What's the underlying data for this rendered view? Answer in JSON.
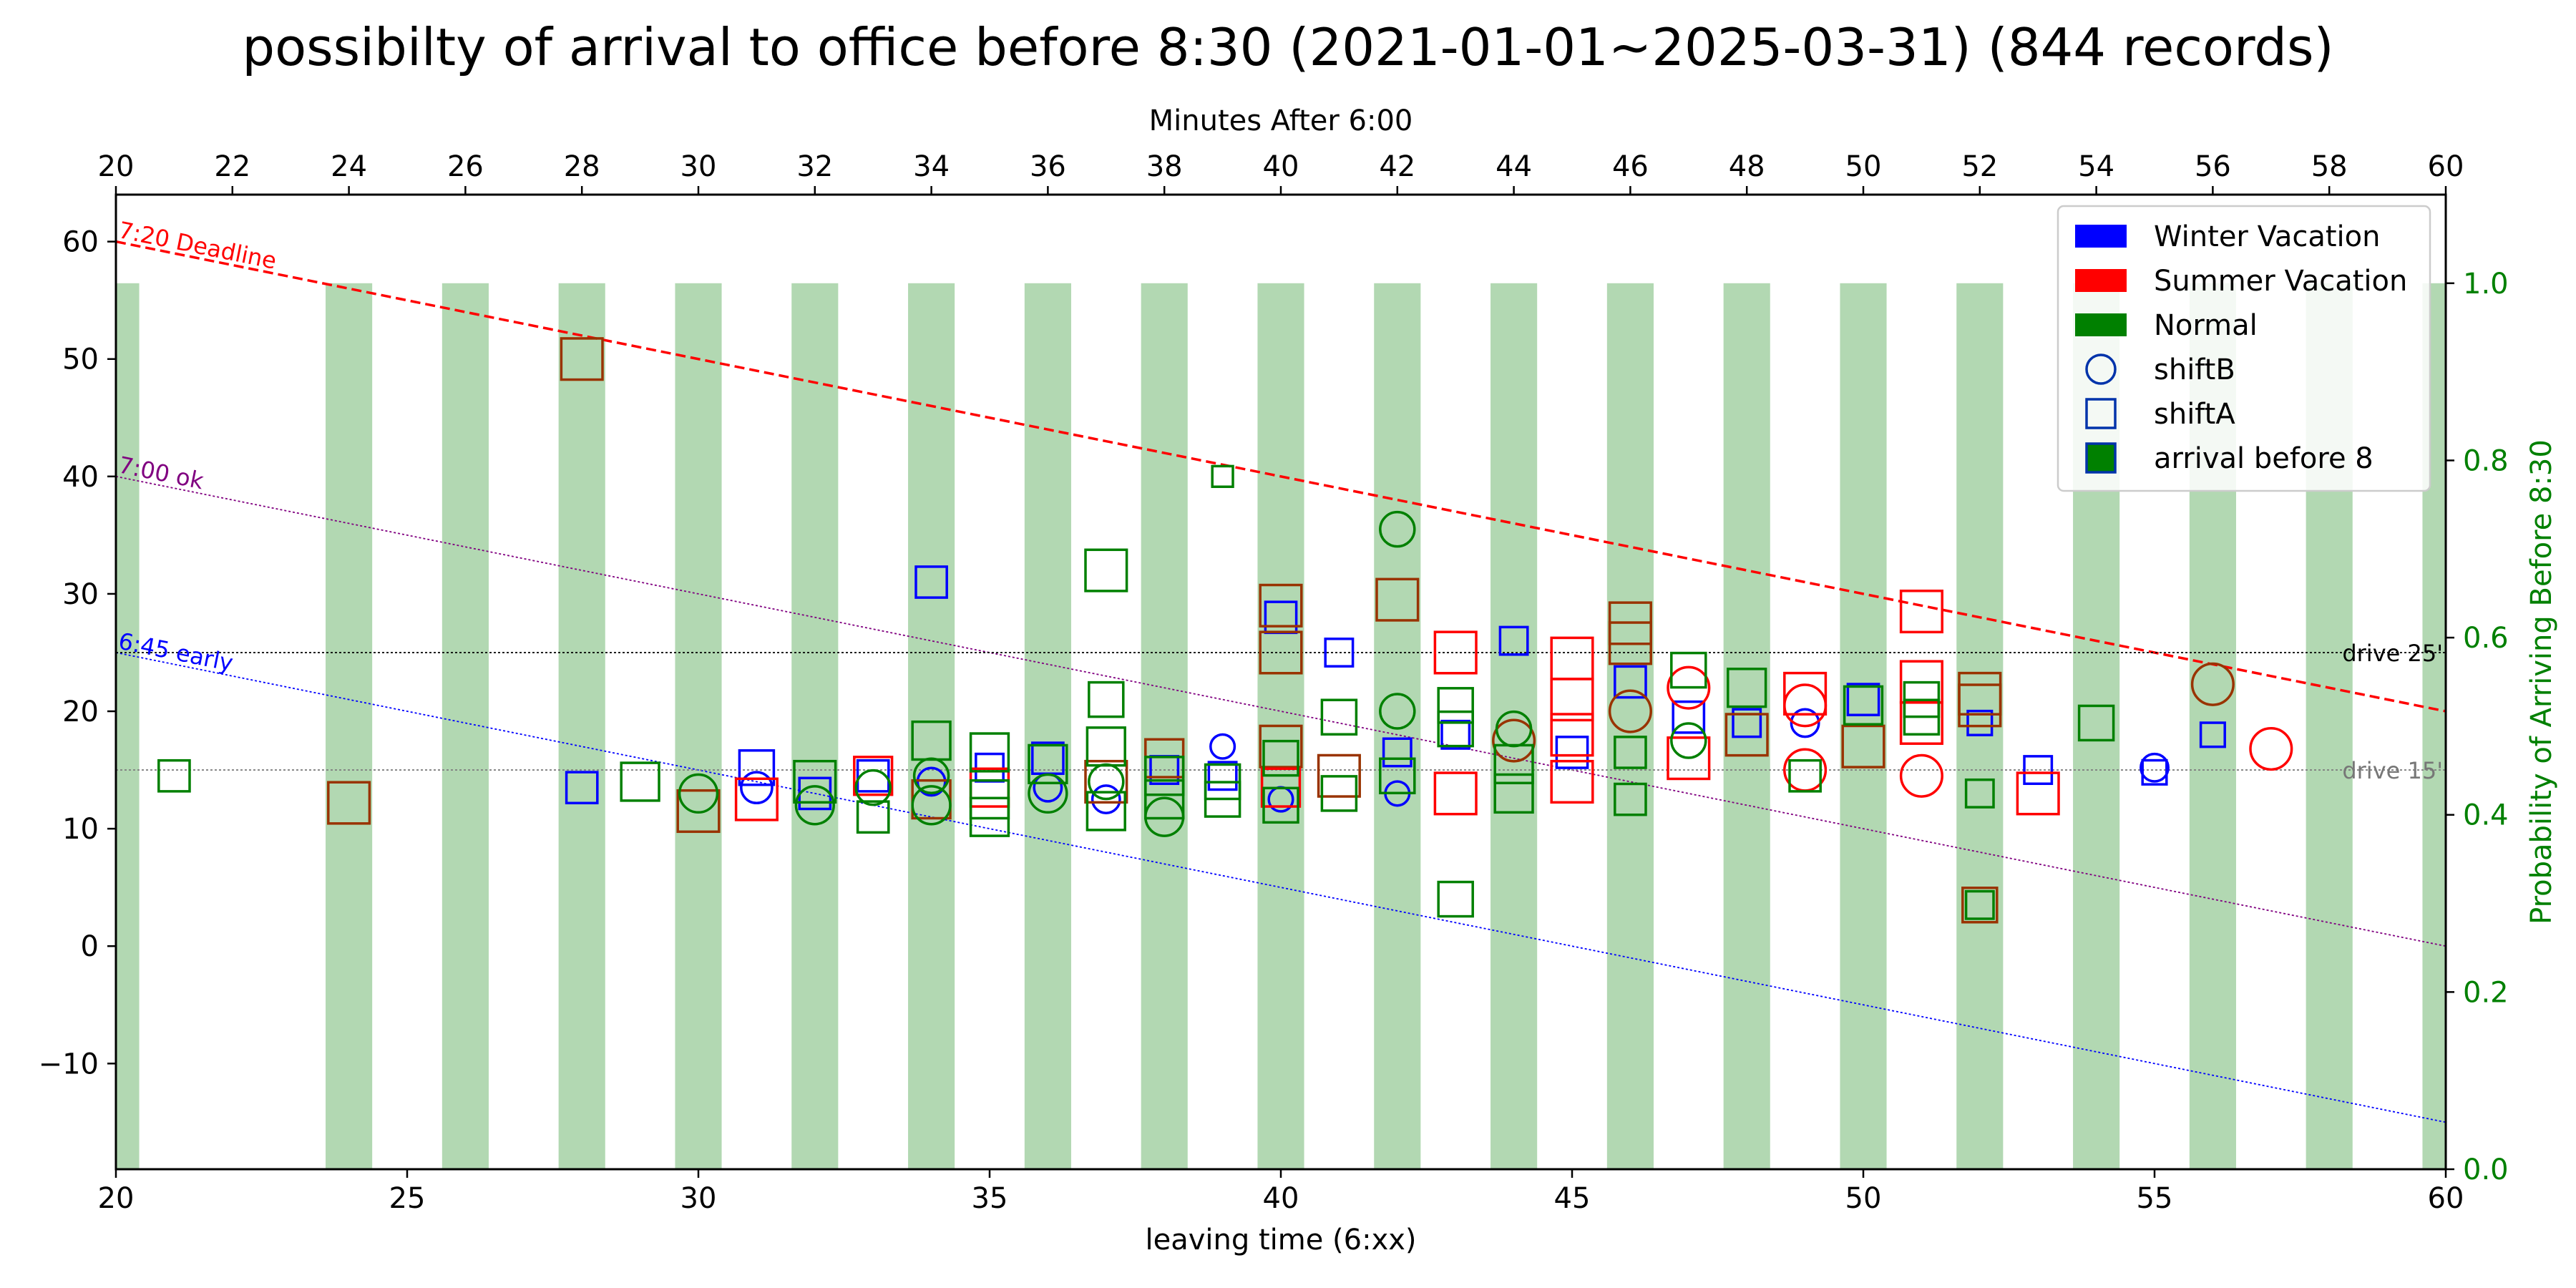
{
  "colors": {
    "winter": "#0000ff",
    "summer": "#ff0000",
    "normal": "#008000",
    "arrive_before_8": "#993300",
    "prob_bar": "#b2d8b2",
    "prob_axis": "#008000"
  },
  "chart_data": {
    "type": "scatter",
    "title": "possibilty of arrival to office before 8:30 (2021-01-01~2025-03-31) (844 records)",
    "xlabel": "leaving time (6:xx)",
    "xlabel_top": "Minutes After 6:00",
    "ylabel_right": "Probability of Arriving Before 8:30",
    "xlim": [
      20,
      60
    ],
    "ylim": [
      -19,
      64
    ],
    "ylim_right": [
      0,
      1.1
    ],
    "xticks": [
      20,
      25,
      30,
      35,
      40,
      45,
      50,
      55,
      60
    ],
    "xticks_top": [
      20,
      22,
      24,
      26,
      28,
      30,
      32,
      34,
      36,
      38,
      40,
      42,
      44,
      46,
      48,
      50,
      52,
      54,
      56,
      58,
      60
    ],
    "yticks": [
      -10,
      0,
      10,
      20,
      30,
      40,
      50,
      60
    ],
    "yticks_right": [
      0.0,
      0.2,
      0.4,
      0.6,
      0.8,
      1.0
    ],
    "legend": {
      "position": "top-right",
      "items": [
        {
          "label": "Winter Vacation",
          "kind": "patch",
          "color": "#0000ff"
        },
        {
          "label": "Summer Vacation",
          "kind": "patch",
          "color": "#ff0000"
        },
        {
          "label": "Normal",
          "kind": "patch",
          "color": "#008000"
        },
        {
          "label": "shiftB",
          "kind": "circle",
          "color": "#0033aa"
        },
        {
          "label": "shiftA",
          "kind": "square",
          "color": "#0033aa"
        },
        {
          "label": "arrival before 8",
          "kind": "square-filled",
          "color": "#0033aa"
        }
      ]
    },
    "reference_lines": [
      {
        "label": "7:20 Deadline",
        "x": [
          20,
          60
        ],
        "y": [
          60,
          20
        ],
        "color": "#ff0000",
        "style": "dashed"
      },
      {
        "label": "7:00 ok",
        "x": [
          20,
          60
        ],
        "y": [
          40,
          0
        ],
        "color": "#800080",
        "style": "dotted"
      },
      {
        "label": "6:45 early",
        "x": [
          20,
          60
        ],
        "y": [
          25,
          -15
        ],
        "color": "#0000ff",
        "style": "dotted"
      },
      {
        "label": "drive 25'",
        "x": [
          20,
          60
        ],
        "y": [
          25,
          25
        ],
        "color": "#000000",
        "style": "dotted"
      },
      {
        "label": "drive 15'",
        "x": [
          20,
          60
        ],
        "y": [
          15,
          15
        ],
        "color": "#808080",
        "style": "dotted"
      }
    ],
    "probability_bars": [
      {
        "x": 20,
        "p": 1.0
      },
      {
        "x": 24,
        "p": 1.0
      },
      {
        "x": 26,
        "p": 1.0
      },
      {
        "x": 28,
        "p": 1.0
      },
      {
        "x": 30,
        "p": 1.0
      },
      {
        "x": 32,
        "p": 1.0
      },
      {
        "x": 34,
        "p": 1.0
      },
      {
        "x": 36,
        "p": 1.0
      },
      {
        "x": 38,
        "p": 1.0
      },
      {
        "x": 40,
        "p": 1.0
      },
      {
        "x": 42,
        "p": 1.0
      },
      {
        "x": 44,
        "p": 1.0
      },
      {
        "x": 46,
        "p": 1.0
      },
      {
        "x": 48,
        "p": 1.0
      },
      {
        "x": 50,
        "p": 1.0
      },
      {
        "x": 52,
        "p": 1.0
      },
      {
        "x": 54,
        "p": 1.0
      },
      {
        "x": 56,
        "p": 1.0
      },
      {
        "x": 58,
        "p": 1.0
      },
      {
        "x": 60,
        "p": 1.0
      }
    ],
    "series": [
      {
        "name": "Winter Vacation",
        "points": [
          {
            "x": 28,
            "y": 13.5,
            "m": "s",
            "s": 0.9
          },
          {
            "x": 31,
            "y": 15.2,
            "m": "s",
            "s": 1
          },
          {
            "x": 31,
            "y": 13.5,
            "m": "o",
            "s": 0.9
          },
          {
            "x": 32,
            "y": 13,
            "m": "s",
            "s": 0.9
          },
          {
            "x": 33,
            "y": 14.5,
            "m": "s",
            "s": 0.9
          },
          {
            "x": 34,
            "y": 31,
            "m": "s",
            "s": 0.9
          },
          {
            "x": 34,
            "y": 14,
            "m": "o",
            "s": 0.8
          },
          {
            "x": 35,
            "y": 15.2,
            "m": "s",
            "s": 0.8
          },
          {
            "x": 36,
            "y": 16,
            "m": "s",
            "s": 0.9
          },
          {
            "x": 36,
            "y": 13.5,
            "m": "o",
            "s": 0.8
          },
          {
            "x": 37,
            "y": 12.5,
            "m": "o",
            "s": 0.8
          },
          {
            "x": 38,
            "y": 15,
            "m": "s",
            "s": 0.8
          },
          {
            "x": 39,
            "y": 17,
            "m": "o",
            "s": 0.7
          },
          {
            "x": 39,
            "y": 14.5,
            "m": "s",
            "s": 0.8
          },
          {
            "x": 40,
            "y": 28,
            "m": "s",
            "s": 0.9
          },
          {
            "x": 40,
            "y": 12.5,
            "m": "o",
            "s": 0.7
          },
          {
            "x": 41,
            "y": 25,
            "m": "s",
            "s": 0.8
          },
          {
            "x": 42,
            "y": 16.5,
            "m": "s",
            "s": 0.8
          },
          {
            "x": 42,
            "y": 13,
            "m": "o",
            "s": 0.7
          },
          {
            "x": 43,
            "y": 18,
            "m": "s",
            "s": 0.8
          },
          {
            "x": 44,
            "y": 26,
            "m": "s",
            "s": 0.8
          },
          {
            "x": 45,
            "y": 16.5,
            "m": "s",
            "s": 0.9
          },
          {
            "x": 46,
            "y": 22.5,
            "m": "s",
            "s": 0.9
          },
          {
            "x": 47,
            "y": 19.5,
            "m": "s",
            "s": 0.9
          },
          {
            "x": 48,
            "y": 19,
            "m": "s",
            "s": 0.8
          },
          {
            "x": 49,
            "y": 19,
            "m": "o",
            "s": 0.8
          },
          {
            "x": 50,
            "y": 21,
            "m": "s",
            "s": 0.9
          },
          {
            "x": 52,
            "y": 19,
            "m": "s",
            "s": 0.7
          },
          {
            "x": 53,
            "y": 15,
            "m": "s",
            "s": 0.8
          },
          {
            "x": 55,
            "y": 15.2,
            "m": "o",
            "s": 0.8
          },
          {
            "x": 55,
            "y": 14.8,
            "m": "s",
            "s": 0.7
          },
          {
            "x": 56,
            "y": 18,
            "m": "s",
            "s": 0.7
          }
        ]
      },
      {
        "name": "Summer Vacation",
        "points": [
          {
            "x": 24,
            "y": 12.2,
            "m": "s",
            "s": 1.2,
            "e": true
          },
          {
            "x": 28,
            "y": 50,
            "m": "s",
            "s": 1.2,
            "e": true
          },
          {
            "x": 30,
            "y": 11.5,
            "m": "s",
            "s": 1.2,
            "e": true
          },
          {
            "x": 31,
            "y": 12.5,
            "m": "s",
            "s": 1.2
          },
          {
            "x": 33,
            "y": 14.5,
            "m": "s",
            "s": 1.1
          },
          {
            "x": 34,
            "y": 12.5,
            "m": "s",
            "s": 1.1,
            "e": true
          },
          {
            "x": 35,
            "y": 13.5,
            "m": "s",
            "s": 1.1
          },
          {
            "x": 37,
            "y": 14,
            "m": "s",
            "s": 1.2,
            "e": true
          },
          {
            "x": 38,
            "y": 16,
            "m": "s",
            "s": 1.1,
            "e": true
          },
          {
            "x": 40,
            "y": 29,
            "m": "s",
            "s": 1.2,
            "e": true
          },
          {
            "x": 40,
            "y": 25,
            "m": "s",
            "s": 1.2,
            "e": true
          },
          {
            "x": 40,
            "y": 17,
            "m": "s",
            "s": 1.2,
            "e": true
          },
          {
            "x": 40,
            "y": 13.5,
            "m": "s",
            "s": 1.1
          },
          {
            "x": 41,
            "y": 14.5,
            "m": "s",
            "s": 1.2,
            "e": true
          },
          {
            "x": 42,
            "y": 29.5,
            "m": "s",
            "s": 1.2,
            "e": true
          },
          {
            "x": 43,
            "y": 25,
            "m": "s",
            "s": 1.2
          },
          {
            "x": 43,
            "y": 13,
            "m": "s",
            "s": 1.2
          },
          {
            "x": 44,
            "y": 17.5,
            "m": "o",
            "s": 1.2,
            "e": true
          },
          {
            "x": 45,
            "y": 24.5,
            "m": "s",
            "s": 1.2
          },
          {
            "x": 45,
            "y": 21,
            "m": "s",
            "s": 1.2
          },
          {
            "x": 45,
            "y": 18,
            "m": "s",
            "s": 1.2
          },
          {
            "x": 45,
            "y": 14,
            "m": "s",
            "s": 1.2
          },
          {
            "x": 46,
            "y": 27.5,
            "m": "s",
            "s": 1.2,
            "e": true
          },
          {
            "x": 46,
            "y": 25.8,
            "m": "s",
            "s": 1.2,
            "e": true
          },
          {
            "x": 46,
            "y": 20,
            "m": "o",
            "s": 1.2,
            "e": true
          },
          {
            "x": 47,
            "y": 22,
            "m": "o",
            "s": 1.2
          },
          {
            "x": 47,
            "y": 16,
            "m": "s",
            "s": 1.2
          },
          {
            "x": 48,
            "y": 18,
            "m": "s",
            "s": 1.2,
            "e": true
          },
          {
            "x": 49,
            "y": 21.5,
            "m": "s",
            "s": 1.2
          },
          {
            "x": 49,
            "y": 20.5,
            "m": "o",
            "s": 1.2
          },
          {
            "x": 49,
            "y": 15,
            "m": "o",
            "s": 1.2
          },
          {
            "x": 50,
            "y": 17,
            "m": "s",
            "s": 1.2,
            "e": true
          },
          {
            "x": 51,
            "y": 28.5,
            "m": "s",
            "s": 1.2
          },
          {
            "x": 51,
            "y": 22.5,
            "m": "s",
            "s": 1.2
          },
          {
            "x": 51,
            "y": 19,
            "m": "s",
            "s": 1.2
          },
          {
            "x": 51,
            "y": 14.5,
            "m": "o",
            "s": 1.2
          },
          {
            "x": 52,
            "y": 21.5,
            "m": "s",
            "s": 1.2,
            "e": true
          },
          {
            "x": 52,
            "y": 20.5,
            "m": "s",
            "s": 1.2,
            "e": true
          },
          {
            "x": 52,
            "y": 3.5,
            "m": "s",
            "s": 1.0,
            "e": true
          },
          {
            "x": 53,
            "y": 13,
            "m": "s",
            "s": 1.2
          },
          {
            "x": 56,
            "y": 22.3,
            "m": "o",
            "s": 1.2,
            "e": true
          },
          {
            "x": 57,
            "y": 16.8,
            "m": "o",
            "s": 1.2
          }
        ]
      },
      {
        "name": "Normal",
        "points": [
          {
            "x": 21,
            "y": 14.5,
            "m": "s",
            "s": 0.9
          },
          {
            "x": 29,
            "y": 14,
            "m": "s",
            "s": 1.1
          },
          {
            "x": 30,
            "y": 13,
            "m": "o",
            "s": 1.1
          },
          {
            "x": 32,
            "y": 14,
            "m": "s",
            "s": 1.2
          },
          {
            "x": 32,
            "y": 12,
            "m": "o",
            "s": 1.1
          },
          {
            "x": 33,
            "y": 11,
            "m": "s",
            "s": 0.9
          },
          {
            "x": 33,
            "y": 13.5,
            "m": "o",
            "s": 1.0
          },
          {
            "x": 34,
            "y": 17.5,
            "m": "s",
            "s": 1.1
          },
          {
            "x": 34,
            "y": 14.5,
            "m": "o",
            "s": 1.0
          },
          {
            "x": 34,
            "y": 12,
            "m": "o",
            "s": 1.1
          },
          {
            "x": 35,
            "y": 16.5,
            "m": "s",
            "s": 1.1
          },
          {
            "x": 35,
            "y": 12.5,
            "m": "s",
            "s": 1.1
          },
          {
            "x": 35,
            "y": 11,
            "m": "s",
            "s": 1.1
          },
          {
            "x": 36,
            "y": 15.5,
            "m": "s",
            "s": 1.1
          },
          {
            "x": 36,
            "y": 13,
            "m": "o",
            "s": 1.1
          },
          {
            "x": 37,
            "y": 32,
            "m": "s",
            "s": 1.2
          },
          {
            "x": 37,
            "y": 21,
            "m": "s",
            "s": 1.0
          },
          {
            "x": 37,
            "y": 17,
            "m": "s",
            "s": 1.1
          },
          {
            "x": 37,
            "y": 14,
            "m": "o",
            "s": 1.0
          },
          {
            "x": 37,
            "y": 11.5,
            "m": "s",
            "s": 1.1
          },
          {
            "x": 38,
            "y": 14.5,
            "m": "s",
            "s": 1.1
          },
          {
            "x": 38,
            "y": 12.5,
            "m": "s",
            "s": 1.1
          },
          {
            "x": 38,
            "y": 11,
            "m": "o",
            "s": 1.1
          },
          {
            "x": 39,
            "y": 40,
            "m": "s",
            "s": 0.6
          },
          {
            "x": 39,
            "y": 14,
            "m": "s",
            "s": 1.0
          },
          {
            "x": 39,
            "y": 12.5,
            "m": "s",
            "s": 1.0
          },
          {
            "x": 40,
            "y": 16,
            "m": "s",
            "s": 1.0
          },
          {
            "x": 40,
            "y": 12,
            "m": "s",
            "s": 1.0
          },
          {
            "x": 41,
            "y": 19.5,
            "m": "s",
            "s": 1.0
          },
          {
            "x": 41,
            "y": 13,
            "m": "s",
            "s": 1.0
          },
          {
            "x": 42,
            "y": 35.5,
            "m": "o",
            "s": 1.0
          },
          {
            "x": 42,
            "y": 20,
            "m": "o",
            "s": 1.0
          },
          {
            "x": 42,
            "y": 14.5,
            "m": "s",
            "s": 1.0
          },
          {
            "x": 43,
            "y": 20.5,
            "m": "s",
            "s": 1.0
          },
          {
            "x": 43,
            "y": 18.5,
            "m": "s",
            "s": 1.0
          },
          {
            "x": 43,
            "y": 4,
            "m": "s",
            "s": 1.0
          },
          {
            "x": 44,
            "y": 18.5,
            "m": "o",
            "s": 1.0
          },
          {
            "x": 44,
            "y": 15.5,
            "m": "s",
            "s": 1.1
          },
          {
            "x": 44,
            "y": 13,
            "m": "s",
            "s": 1.1
          },
          {
            "x": 46,
            "y": 16.5,
            "m": "s",
            "s": 0.9
          },
          {
            "x": 46,
            "y": 12.5,
            "m": "s",
            "s": 0.9
          },
          {
            "x": 47,
            "y": 23.5,
            "m": "s",
            "s": 1.0
          },
          {
            "x": 47,
            "y": 17.5,
            "m": "o",
            "s": 1.0
          },
          {
            "x": 48,
            "y": 22,
            "m": "s",
            "s": 1.1
          },
          {
            "x": 49,
            "y": 14.5,
            "m": "s",
            "s": 0.9
          },
          {
            "x": 50,
            "y": 20.5,
            "m": "s",
            "s": 1.1
          },
          {
            "x": 51,
            "y": 21,
            "m": "s",
            "s": 1.0
          },
          {
            "x": 51,
            "y": 19.5,
            "m": "s",
            "s": 1.0
          },
          {
            "x": 52,
            "y": 13,
            "m": "s",
            "s": 0.8
          },
          {
            "x": 52,
            "y": 3.5,
            "m": "s",
            "s": 0.8
          },
          {
            "x": 54,
            "y": 19,
            "m": "s",
            "s": 1.0
          }
        ]
      }
    ]
  }
}
